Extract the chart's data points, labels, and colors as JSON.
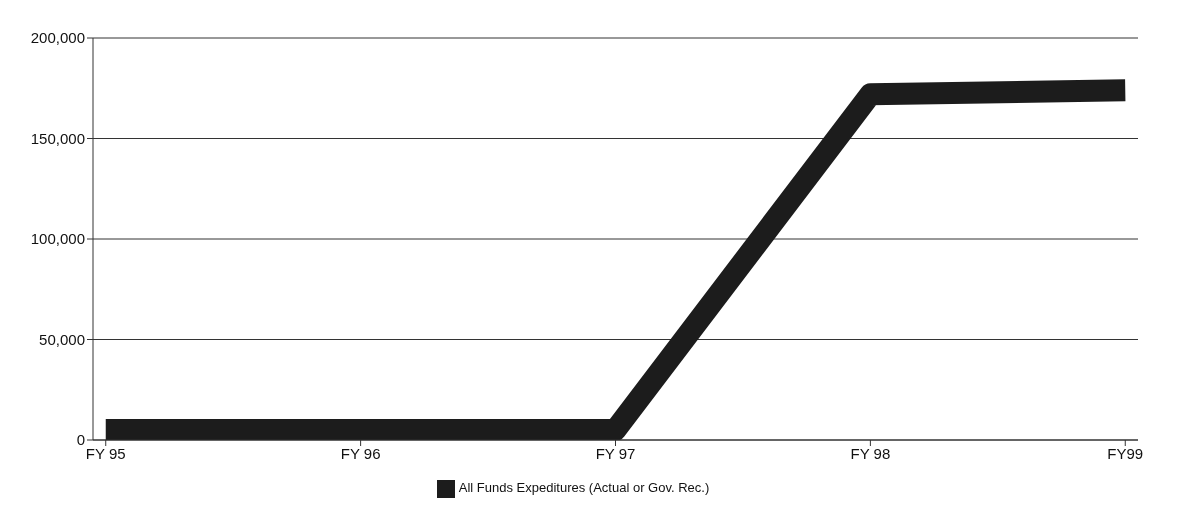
{
  "chart_data": {
    "type": "line",
    "categories": [
      "FY 95",
      "FY 96",
      "FY 97",
      "FY 98",
      "FY99"
    ],
    "series": [
      {
        "name": "All Funds Expeditures (Actual or Gov. Rec.)",
        "color": "#1c1c1c",
        "values": [
          5000,
          5000,
          5000,
          172000,
          174000
        ]
      }
    ],
    "ylim": [
      0,
      200000
    ],
    "yticks": [
      {
        "value": 0,
        "label": "0"
      },
      {
        "value": 50000,
        "label": "50,000"
      },
      {
        "value": 100000,
        "label": "100,000"
      },
      {
        "value": 150000,
        "label": "150,000"
      },
      {
        "value": 200000,
        "label": "200,000"
      }
    ],
    "grid": "y",
    "legend": "bottom",
    "marker": "none",
    "line_style": "solid"
  }
}
